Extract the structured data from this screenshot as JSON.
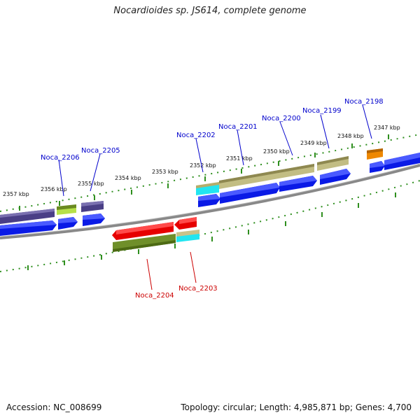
{
  "title": "Nocardioides sp. JS614, complete genome",
  "footer": {
    "accession": "Accession: NC_008699",
    "summary": "Topology: circular; Length: 4,985,871 bp; Genes: 4,700"
  },
  "colors": {
    "plus_label": "#0000cc",
    "minus_label": "#cc0000",
    "backbone": "#8a8a8a",
    "tick": "#2f8f1f",
    "cds_blue": "#0a1ae6",
    "cds_purple": "#4a3f86",
    "cds_olive": "#c2bd83",
    "cds_lime": "#99cc33",
    "cds_orange": "#ee8800",
    "cds_red": "#e60000",
    "cds_green": "#6f8f2a",
    "cds_cyan": "#22e5f0",
    "cds_tan": "#c8c28a"
  },
  "kbp_labels": [
    "2357 kbp",
    "2356 kbp",
    "2355 kbp",
    "2354 kbp",
    "2353 kbp",
    "2352 kbp",
    "2351 kbp",
    "2350 kbp",
    "2349 kbp",
    "2348 kbp",
    "2347 kbp"
  ],
  "genes_plus": [
    "Noca_2206",
    "Noca_2205",
    "Noca_2202",
    "Noca_2201",
    "Noca_2200",
    "Noca_2199",
    "Noca_2198"
  ],
  "genes_minus": [
    "Noca_2204",
    "Noca_2203"
  ]
}
